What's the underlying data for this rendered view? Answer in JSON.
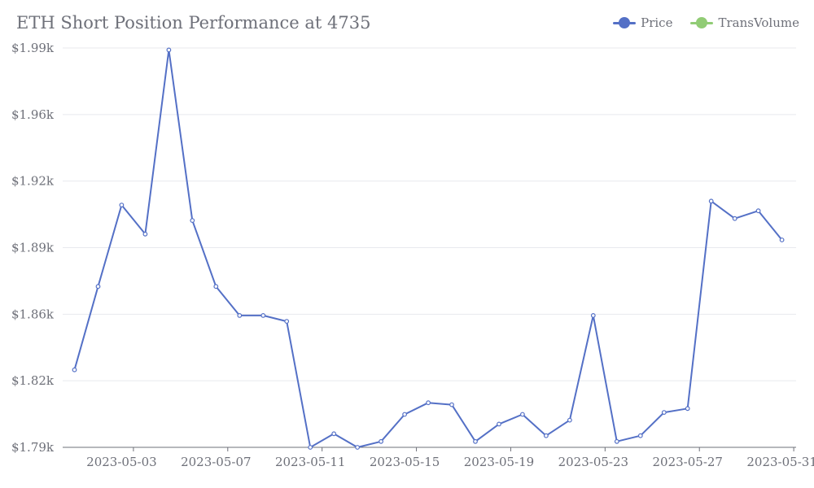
{
  "chart_data": {
    "type": "line",
    "title": "ETH Short Position Performance at 4735",
    "legend": {
      "position": "top-right",
      "items": [
        {
          "name": "Price",
          "color": "#5470c6"
        },
        {
          "name": "TransVolume",
          "color": "#91cc75"
        }
      ]
    },
    "x": [
      "2023-05-01",
      "2023-05-02",
      "2023-05-03",
      "2023-05-04",
      "2023-05-05",
      "2023-05-06",
      "2023-05-07",
      "2023-05-08",
      "2023-05-09",
      "2023-05-10",
      "2023-05-11",
      "2023-05-12",
      "2023-05-13",
      "2023-05-14",
      "2023-05-15",
      "2023-05-16",
      "2023-05-17",
      "2023-05-18",
      "2023-05-19",
      "2023-05-20",
      "2023-05-21",
      "2023-05-22",
      "2023-05-23",
      "2023-05-24",
      "2023-05-25",
      "2023-05-26",
      "2023-05-27",
      "2023-05-28",
      "2023-05-29",
      "2023-05-30",
      "2023-05-31"
    ],
    "x_tick_labels": [
      "2023-05-03",
      "2023-05-07",
      "2023-05-11",
      "2023-05-15",
      "2023-05-19",
      "2023-05-23",
      "2023-05-27",
      "2023-05-31"
    ],
    "series": [
      {
        "name": "Price",
        "color": "#5470c6",
        "values": [
          1830,
          1873,
          1915,
          1900,
          1995,
          1907,
          1873,
          1858,
          1858,
          1855,
          1790,
          1797,
          1790,
          1793,
          1807,
          1813,
          1812,
          1793,
          1802,
          1807,
          1796,
          1804,
          1858,
          1793,
          1796,
          1808,
          1810,
          1917,
          1908,
          1912,
          1897
        ]
      }
    ],
    "y_tick_labels": [
      "$1.79k",
      "$1.82k",
      "$1.86k",
      "$1.89k",
      "$1.92k",
      "$1.96k",
      "$1.99k"
    ],
    "ylim": [
      1790,
      1996
    ],
    "xlabel": "",
    "ylabel": "",
    "grid": true
  }
}
